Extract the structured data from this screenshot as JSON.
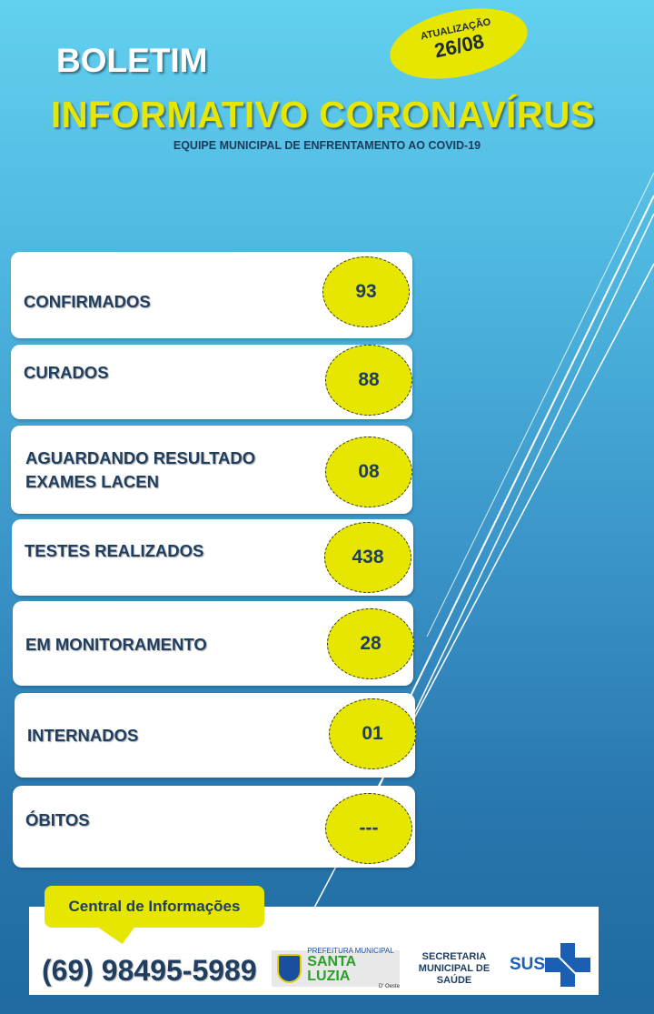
{
  "header": {
    "boletim": "BOLETIM",
    "title": "INFORMATIVO  CORONAVÍRUS",
    "subtitle": "EQUIPE MUNICIPAL DE ENFRENTAMENTO AO COVID-19",
    "update_label": "ATUALIZAÇÃO",
    "update_date": "26/08"
  },
  "stats": [
    {
      "label": "CONFIRMADOS",
      "value": "93"
    },
    {
      "label": "CURADOS",
      "value": "88"
    },
    {
      "label": "AGUARDANDO  RESULTADO",
      "label2": "EXAMES LACEN",
      "value": "08"
    },
    {
      "label": "TESTES REALIZADOS",
      "value": "438"
    },
    {
      "label": "EM MONITORAMENTO",
      "value": "28"
    },
    {
      "label": "INTERNADOS",
      "value": "01"
    },
    {
      "label": "ÓBITOS",
      "value": "---"
    }
  ],
  "footer": {
    "central": "Central de Informações",
    "phone": "(69) 98495-5989",
    "prefeitura_line1": "PREFEITURA MUNICIPAL",
    "prefeitura_line2": "SANTA LUZIA",
    "prefeitura_line3": "D' Oeste",
    "secretaria": "SECRETARIA MUNICIPAL DE SAÚDE",
    "sus": "SUS"
  },
  "colors": {
    "yellow": "#e6e600",
    "navy": "#1f3e60",
    "sky_top": "#62d0ef",
    "sky_bottom": "#1f6aa0"
  }
}
